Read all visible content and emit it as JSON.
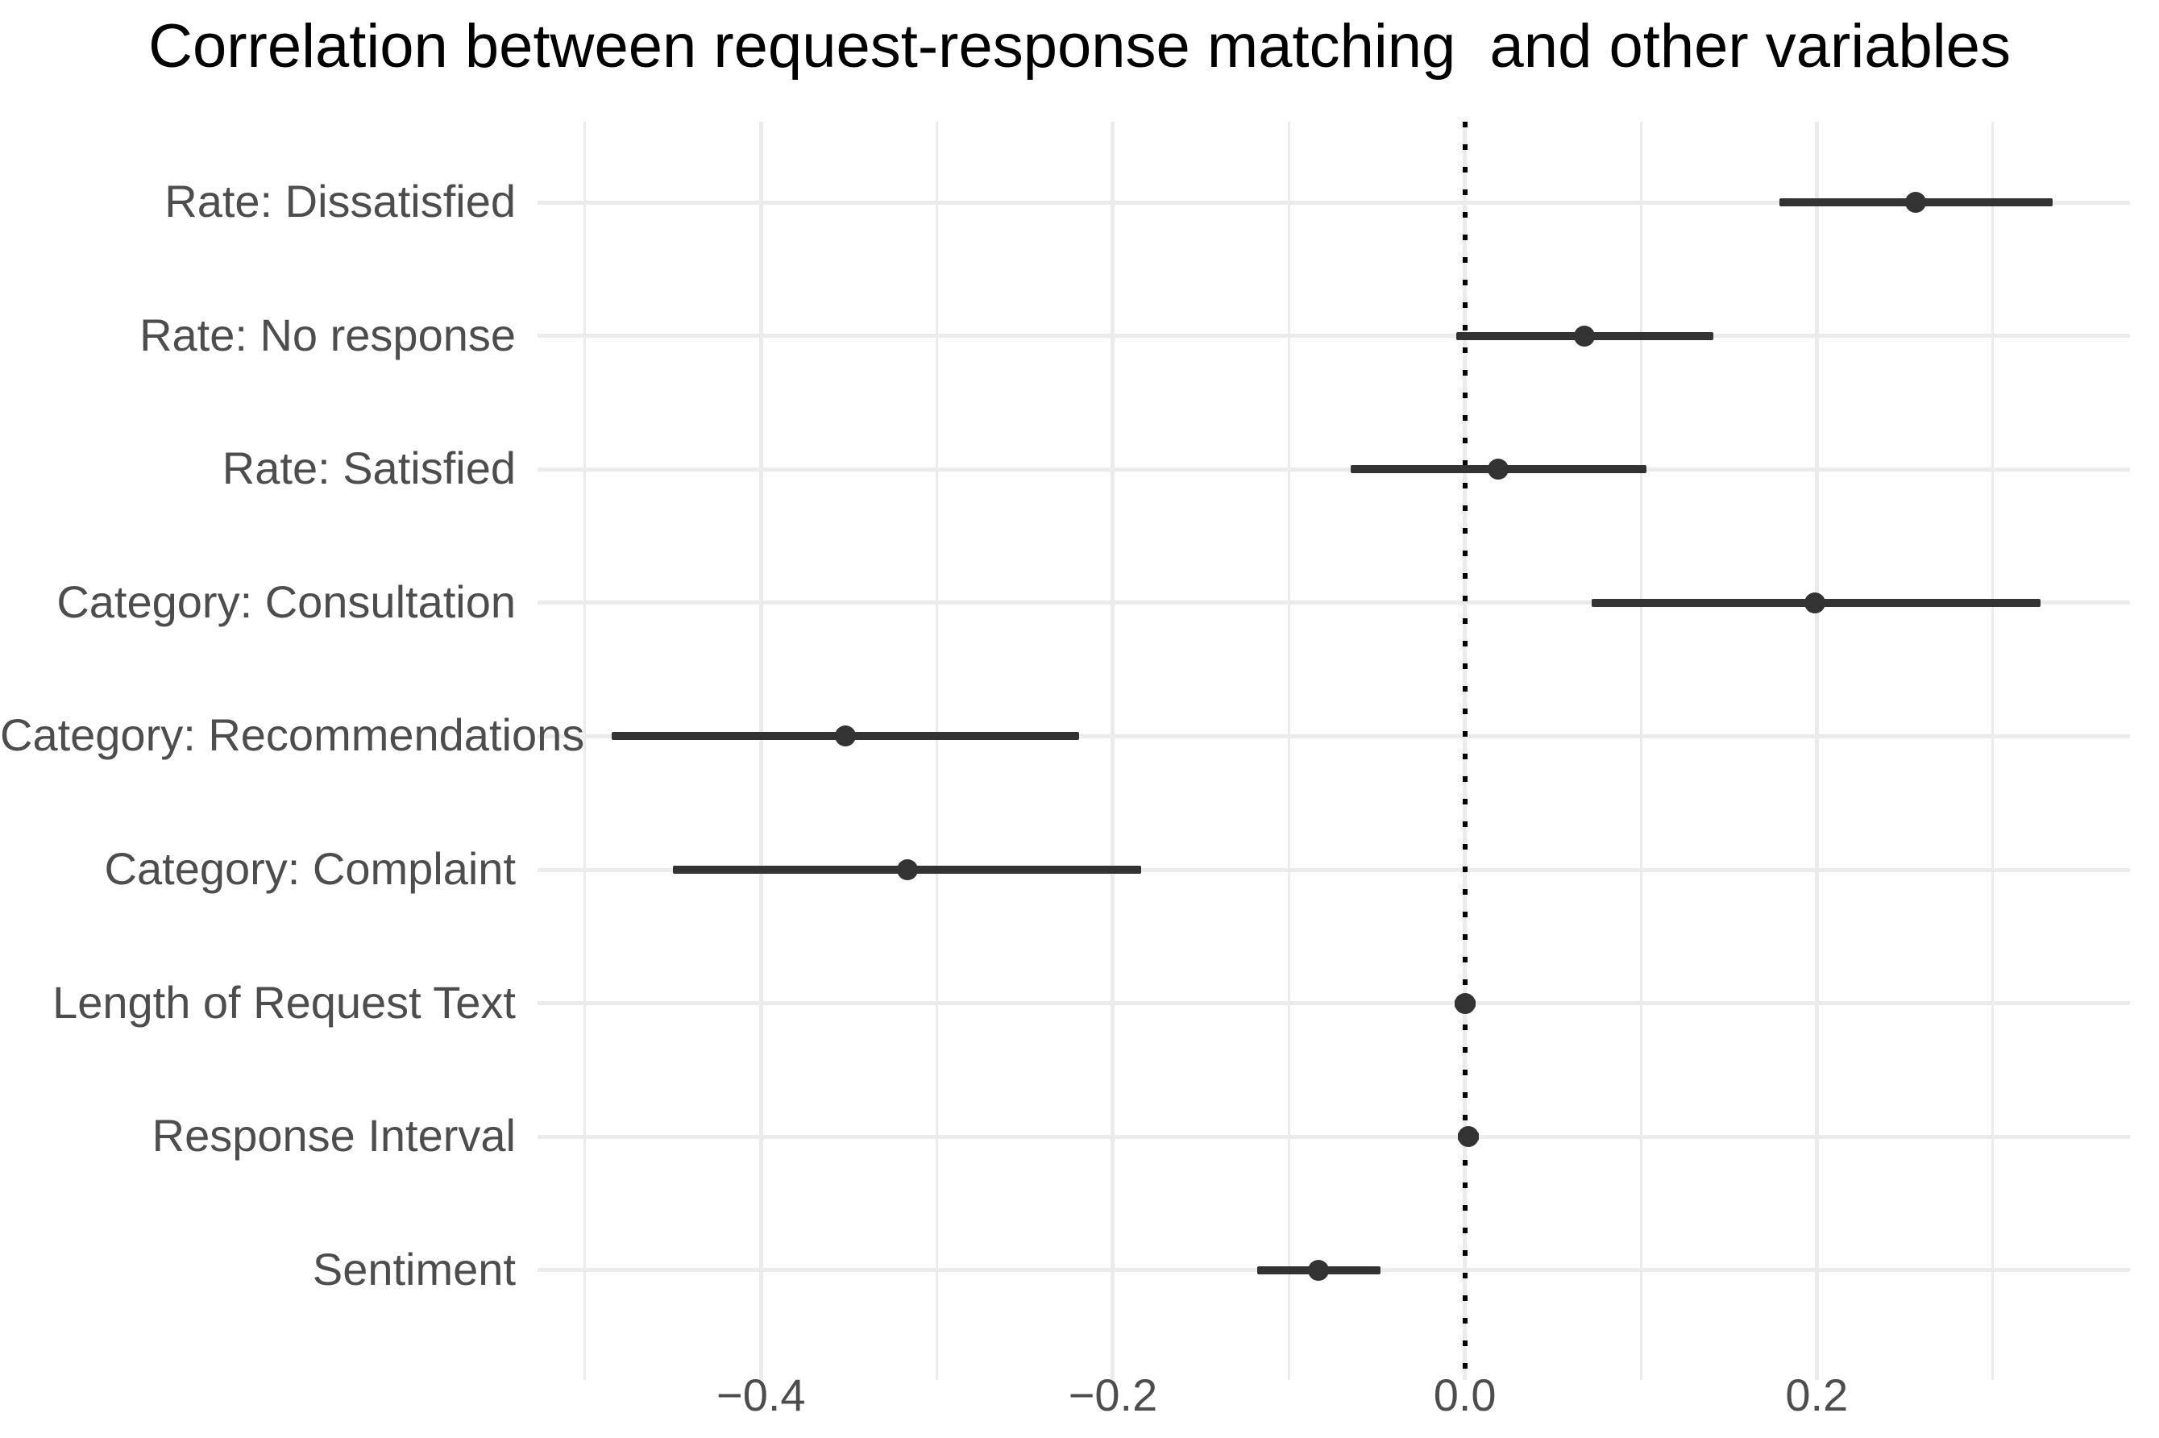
{
  "title": "Correlation between request-response matching  and other variables",
  "chart_data": {
    "type": "scatter",
    "subtype": "horizontal-pointrange",
    "title": "Correlation between request-response matching  and other variables",
    "xlabel": "",
    "ylabel": "",
    "xlim": [
      -0.527,
      0.378
    ],
    "x_major_ticks": [
      -0.4,
      -0.2,
      0.0,
      0.2
    ],
    "x_tick_labels": [
      "−0.4",
      "−0.2",
      "0.0",
      "0.2"
    ],
    "x_minor_gridlines": [
      -0.5,
      -0.3,
      -0.1,
      0.1,
      0.3
    ],
    "reference_line_x": 0,
    "reference_line_style": "dotted",
    "grid": "on",
    "legend": "none",
    "categories": [
      "Rate: Dissatisfied",
      "Rate: No response",
      "Rate: Satisfied",
      "Category: Consultation",
      "Category: Recommendations",
      "Category: Complaint",
      "Length of Request Text",
      "Response Interval",
      "Sentiment"
    ],
    "series": [
      {
        "name": "correlation",
        "points": [
          {
            "category": "Rate: Dissatisfied",
            "estimate": 0.256,
            "ci_low": 0.179,
            "ci_high": 0.334
          },
          {
            "category": "Rate: No response",
            "estimate": 0.068,
            "ci_low": -0.005,
            "ci_high": 0.141
          },
          {
            "category": "Rate: Satisfied",
            "estimate": 0.019,
            "ci_low": -0.065,
            "ci_high": 0.103
          },
          {
            "category": "Category: Consultation",
            "estimate": 0.199,
            "ci_low": 0.072,
            "ci_high": 0.327
          },
          {
            "category": "Category: Recommendations",
            "estimate": -0.352,
            "ci_low": -0.485,
            "ci_high": -0.219
          },
          {
            "category": "Category: Complaint",
            "estimate": -0.317,
            "ci_low": -0.45,
            "ci_high": -0.184
          },
          {
            "category": "Length of Request Text",
            "estimate": 0.0,
            "ci_low": -0.006,
            "ci_high": 0.006
          },
          {
            "category": "Response Interval",
            "estimate": 0.002,
            "ci_low": -0.004,
            "ci_high": 0.008
          },
          {
            "category": "Sentiment",
            "estimate": -0.083,
            "ci_low": -0.118,
            "ci_high": -0.048
          }
        ]
      }
    ]
  },
  "colors": {
    "background": "#ffffff",
    "gridline": "#ebebeb",
    "point_and_range": "#333333",
    "axis_text": "#4d4d4d",
    "title_text": "#000000",
    "reference_line": "#000000"
  }
}
